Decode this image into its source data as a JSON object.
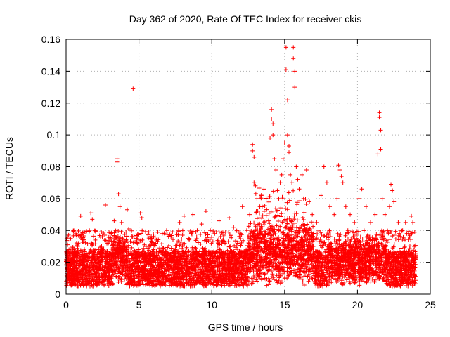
{
  "chart_data": {
    "type": "scatter",
    "title": "Day 362 of 2020, Rate Of TEC Index for receiver ckis",
    "xlabel": "GPS time / hours",
    "ylabel": "ROTI / TECUs",
    "xlim": [
      0,
      25
    ],
    "ylim": [
      0,
      0.16
    ],
    "xticks": [
      0,
      5,
      10,
      15,
      20,
      25
    ],
    "yticks": [
      0,
      0.02,
      0.04,
      0.06,
      0.08,
      0.1,
      0.12,
      0.14,
      0.16
    ],
    "xtick_labels": [
      "0",
      "5",
      "10",
      "15",
      "20",
      "25"
    ],
    "ytick_labels": [
      "0",
      "0.02",
      "0.04",
      "0.06",
      "0.08",
      "0.1",
      "0.12",
      "0.14",
      "0.16"
    ],
    "grid": true,
    "marker": "plus",
    "series": [
      {
        "color": "#ff0000",
        "points": [
          [
            0.1,
            0.031
          ],
          [
            0.2,
            0.028
          ],
          [
            0.3,
            0.018
          ],
          [
            0.5,
            0.022
          ],
          [
            0.8,
            0.03
          ],
          [
            1.0,
            0.049
          ],
          [
            1.1,
            0.026
          ],
          [
            1.3,
            0.018
          ],
          [
            1.6,
            0.04
          ],
          [
            1.7,
            0.051
          ],
          [
            1.8,
            0.047
          ],
          [
            2.0,
            0.034
          ],
          [
            2.2,
            0.02
          ],
          [
            2.5,
            0.028
          ],
          [
            2.7,
            0.056
          ],
          [
            2.9,
            0.032
          ],
          [
            3.1,
            0.038
          ],
          [
            3.3,
            0.046
          ],
          [
            3.5,
            0.085
          ],
          [
            3.5,
            0.083
          ],
          [
            3.6,
            0.063
          ],
          [
            3.7,
            0.055
          ],
          [
            3.8,
            0.045
          ],
          [
            4.0,
            0.03
          ],
          [
            4.2,
            0.053
          ],
          [
            4.3,
            0.041
          ],
          [
            4.5,
            0.025
          ],
          [
            4.6,
            0.129
          ],
          [
            4.8,
            0.035
          ],
          [
            5.1,
            0.051
          ],
          [
            5.2,
            0.048
          ],
          [
            5.5,
            0.03
          ],
          [
            5.8,
            0.035
          ],
          [
            6.0,
            0.028
          ],
          [
            6.3,
            0.033
          ],
          [
            6.6,
            0.038
          ],
          [
            6.9,
            0.04
          ],
          [
            7.2,
            0.036
          ],
          [
            7.5,
            0.028
          ],
          [
            7.8,
            0.045
          ],
          [
            8.1,
            0.049
          ],
          [
            8.4,
            0.035
          ],
          [
            8.7,
            0.05
          ],
          [
            9.0,
            0.04
          ],
          [
            9.3,
            0.044
          ],
          [
            9.6,
            0.052
          ],
          [
            9.9,
            0.04
          ],
          [
            10.2,
            0.038
          ],
          [
            10.5,
            0.046
          ],
          [
            10.8,
            0.036
          ],
          [
            11.2,
            0.048
          ],
          [
            11.5,
            0.042
          ],
          [
            11.8,
            0.033
          ],
          [
            12.1,
            0.055
          ],
          [
            12.4,
            0.04
          ],
          [
            12.6,
            0.05
          ],
          [
            12.8,
            0.094
          ],
          [
            12.8,
            0.09
          ],
          [
            12.9,
            0.086
          ],
          [
            12.9,
            0.07
          ],
          [
            13.0,
            0.068
          ],
          [
            13.1,
            0.06
          ],
          [
            13.3,
            0.055
          ],
          [
            13.6,
            0.052
          ],
          [
            13.9,
            0.046
          ],
          [
            14.0,
            0.098
          ],
          [
            14.1,
            0.116
          ],
          [
            14.1,
            0.11
          ],
          [
            14.2,
            0.107
          ],
          [
            14.2,
            0.1
          ],
          [
            14.3,
            0.085
          ],
          [
            14.4,
            0.078
          ],
          [
            14.5,
            0.065
          ],
          [
            14.6,
            0.06
          ],
          [
            14.7,
            0.07
          ],
          [
            14.8,
            0.075
          ],
          [
            14.9,
            0.085
          ],
          [
            15.0,
            0.095
          ],
          [
            15.1,
            0.155
          ],
          [
            15.1,
            0.141
          ],
          [
            15.2,
            0.122
          ],
          [
            15.2,
            0.1
          ],
          [
            15.3,
            0.093
          ],
          [
            15.3,
            0.089
          ],
          [
            15.4,
            0.075
          ],
          [
            15.5,
            0.07
          ],
          [
            15.6,
            0.155
          ],
          [
            15.6,
            0.148
          ],
          [
            15.7,
            0.14
          ],
          [
            15.7,
            0.13
          ],
          [
            15.8,
            0.08
          ],
          [
            15.9,
            0.072
          ],
          [
            16.0,
            0.066
          ],
          [
            16.2,
            0.075
          ],
          [
            16.3,
            0.06
          ],
          [
            16.5,
            0.078
          ],
          [
            16.7,
            0.058
          ],
          [
            16.9,
            0.05
          ],
          [
            17.2,
            0.045
          ],
          [
            17.5,
            0.062
          ],
          [
            17.7,
            0.08
          ],
          [
            17.9,
            0.07
          ],
          [
            18.1,
            0.055
          ],
          [
            18.4,
            0.05
          ],
          [
            18.6,
            0.06
          ],
          [
            18.7,
            0.081
          ],
          [
            18.8,
            0.078
          ],
          [
            18.9,
            0.074
          ],
          [
            19.0,
            0.07
          ],
          [
            19.2,
            0.055
          ],
          [
            19.5,
            0.05
          ],
          [
            19.8,
            0.045
          ],
          [
            20.1,
            0.06
          ],
          [
            20.3,
            0.066
          ],
          [
            20.6,
            0.055
          ],
          [
            20.9,
            0.045
          ],
          [
            21.2,
            0.05
          ],
          [
            21.4,
            0.088
          ],
          [
            21.5,
            0.114
          ],
          [
            21.5,
            0.111
          ],
          [
            21.6,
            0.103
          ],
          [
            21.6,
            0.091
          ],
          [
            21.7,
            0.06
          ],
          [
            21.9,
            0.05
          ],
          [
            22.2,
            0.055
          ],
          [
            22.3,
            0.069
          ],
          [
            22.4,
            0.065
          ],
          [
            22.5,
            0.058
          ],
          [
            22.8,
            0.045
          ],
          [
            23.1,
            0.04
          ],
          [
            23.3,
            0.045
          ],
          [
            23.5,
            0.038
          ],
          [
            23.7,
            0.049
          ],
          [
            23.8,
            0.045
          ],
          [
            23.9,
            0.03
          ],
          [
            24.0,
            0.022
          ]
        ]
      }
    ],
    "background_points_note": ""
  }
}
